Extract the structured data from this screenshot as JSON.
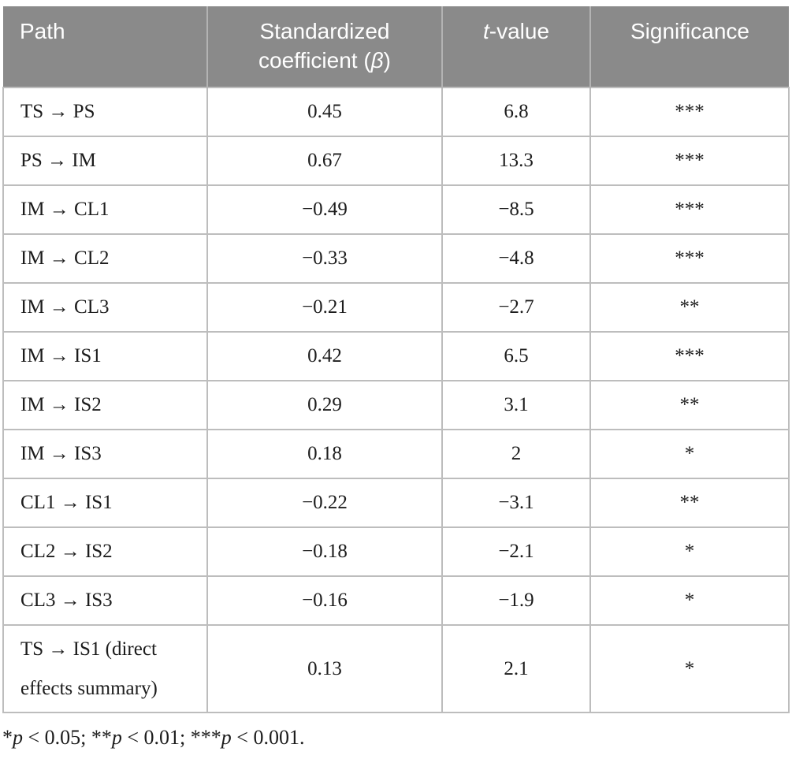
{
  "table": {
    "header": {
      "path": "Path",
      "coefficient_prefix": "Standardized coefficient (",
      "coefficient_symbol": "β",
      "coefficient_suffix": ")",
      "t_symbol": "t",
      "t_rest": "-value",
      "significance": "Significance"
    },
    "rows": [
      {
        "path": "TS → PS",
        "coefficient": "0.45",
        "t_value": "6.8",
        "significance": "***"
      },
      {
        "path": "PS → IM",
        "coefficient": "0.67",
        "t_value": "13.3",
        "significance": "***"
      },
      {
        "path": "IM → CL1",
        "coefficient": "−0.49",
        "t_value": "−8.5",
        "significance": "***"
      },
      {
        "path": "IM → CL2",
        "coefficient": "−0.33",
        "t_value": "−4.8",
        "significance": "***"
      },
      {
        "path": "IM → CL3",
        "coefficient": "−0.21",
        "t_value": "−2.7",
        "significance": "**"
      },
      {
        "path": "IM → IS1",
        "coefficient": "0.42",
        "t_value": "6.5",
        "significance": "***"
      },
      {
        "path": "IM → IS2",
        "coefficient": "0.29",
        "t_value": "3.1",
        "significance": "**"
      },
      {
        "path": "IM → IS3",
        "coefficient": "0.18",
        "t_value": "2",
        "significance": "*"
      },
      {
        "path": "CL1 → IS1",
        "coefficient": "−0.22",
        "t_value": "−3.1",
        "significance": "**"
      },
      {
        "path": "CL2 → IS2",
        "coefficient": "−0.18",
        "t_value": "−2.1",
        "significance": "*"
      },
      {
        "path": "CL3 → IS3",
        "coefficient": "−0.16",
        "t_value": "−1.9",
        "significance": "*"
      },
      {
        "path": "TS → IS1 (direct effects summary)",
        "coefficient": "0.13",
        "t_value": "2.1",
        "significance": "*"
      }
    ]
  },
  "footnote": {
    "star1": "*",
    "p1": "p",
    "seg1": " < 0.05; ",
    "star2": "**",
    "p2": "p",
    "seg2": " < 0.01; ",
    "star3": "***",
    "p3": "p",
    "seg3": " < 0.001."
  },
  "colors": {
    "header_bg": "#8a8a8a",
    "header_text": "#ffffff",
    "grid_border": "#bdbdbd",
    "body_text": "#1c1c1c"
  },
  "chart_data": {
    "type": "table",
    "columns": [
      "Path",
      "Standardized coefficient (β)",
      "t-value",
      "Significance"
    ],
    "rows": [
      [
        "TS → PS",
        "0.45",
        "6.8",
        "***"
      ],
      [
        "PS → IM",
        "0.67",
        "13.3",
        "***"
      ],
      [
        "IM → CL1",
        "−0.49",
        "−8.5",
        "***"
      ],
      [
        "IM → CL2",
        "−0.33",
        "−4.8",
        "***"
      ],
      [
        "IM → CL3",
        "−0.21",
        "−2.7",
        "**"
      ],
      [
        "IM → IS1",
        "0.42",
        "6.5",
        "***"
      ],
      [
        "IM → IS2",
        "0.29",
        "3.1",
        "**"
      ],
      [
        "IM → IS3",
        "0.18",
        "2",
        "*"
      ],
      [
        "CL1 → IS1",
        "−0.22",
        "−3.1",
        "**"
      ],
      [
        "CL2 → IS2",
        "−0.18",
        "−2.1",
        "*"
      ],
      [
        "CL3 → IS3",
        "−0.16",
        "−1.9",
        "*"
      ],
      [
        "TS → IS1 (direct effects summary)",
        "0.13",
        "2.1",
        "*"
      ]
    ],
    "footnote": "*p < 0.05; **p < 0.01; ***p < 0.001."
  }
}
